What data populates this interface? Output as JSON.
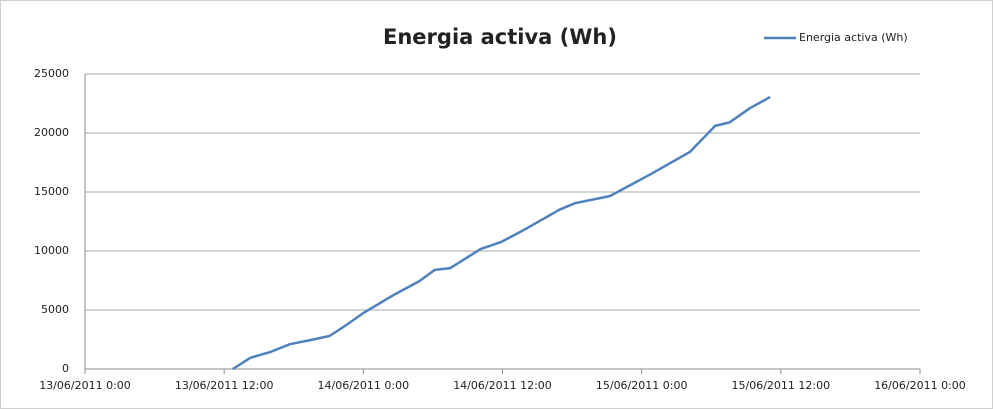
{
  "chart_data": {
    "type": "line",
    "title": "Energia activa (Wh)",
    "x": [
      "2011-06-13T12:45",
      "2011-06-13T14:15",
      "2011-06-13T16:00",
      "2011-06-13T17:40",
      "2011-06-13T19:25",
      "2011-06-13T21:05",
      "2011-06-13T22:25",
      "2011-06-14T00:05",
      "2011-06-14T02:45",
      "2011-06-14T04:50",
      "2011-06-14T06:10",
      "2011-06-14T07:30",
      "2011-06-14T10:05",
      "2011-06-14T11:50",
      "2011-06-14T13:30",
      "2011-06-14T14:25",
      "2011-06-14T16:55",
      "2011-06-14T18:15",
      "2011-06-14T21:15",
      "2011-06-15T00:45",
      "2011-06-15T04:10",
      "2011-06-15T06:20",
      "2011-06-15T07:35",
      "2011-06-15T09:20",
      "2011-06-15T11:05"
    ],
    "series": [
      {
        "name": "Energia activa (Wh)",
        "color": "#4f81bd",
        "values": [
          0,
          950,
          1450,
          2100,
          2450,
          2800,
          3650,
          4800,
          6350,
          7450,
          8400,
          8550,
          10150,
          10750,
          11600,
          12100,
          13500,
          14050,
          14650,
          16500,
          18400,
          20600,
          20900,
          22100,
          23050
        ]
      }
    ],
    "xlim": [
      "2011-06-13T00:00",
      "2011-06-16T00:00"
    ],
    "xticks": [
      {
        "value": "2011-06-13T00:00",
        "label": "13/06/2011 0:00"
      },
      {
        "value": "2011-06-13T12:00",
        "label": "13/06/2011 12:00"
      },
      {
        "value": "2011-06-14T00:00",
        "label": "14/06/2011 0:00"
      },
      {
        "value": "2011-06-14T12:00",
        "label": "14/06/2011 12:00"
      },
      {
        "value": "2011-06-15T00:00",
        "label": "15/06/2011 0:00"
      },
      {
        "value": "2011-06-15T12:00",
        "label": "15/06/2011 12:00"
      },
      {
        "value": "2011-06-16T00:00",
        "label": "16/06/2011 0:00"
      }
    ],
    "ylim": [
      0,
      25000
    ],
    "yticks": [
      0,
      5000,
      10000,
      15000,
      20000,
      25000
    ],
    "grid": true,
    "legend": "top-right"
  }
}
